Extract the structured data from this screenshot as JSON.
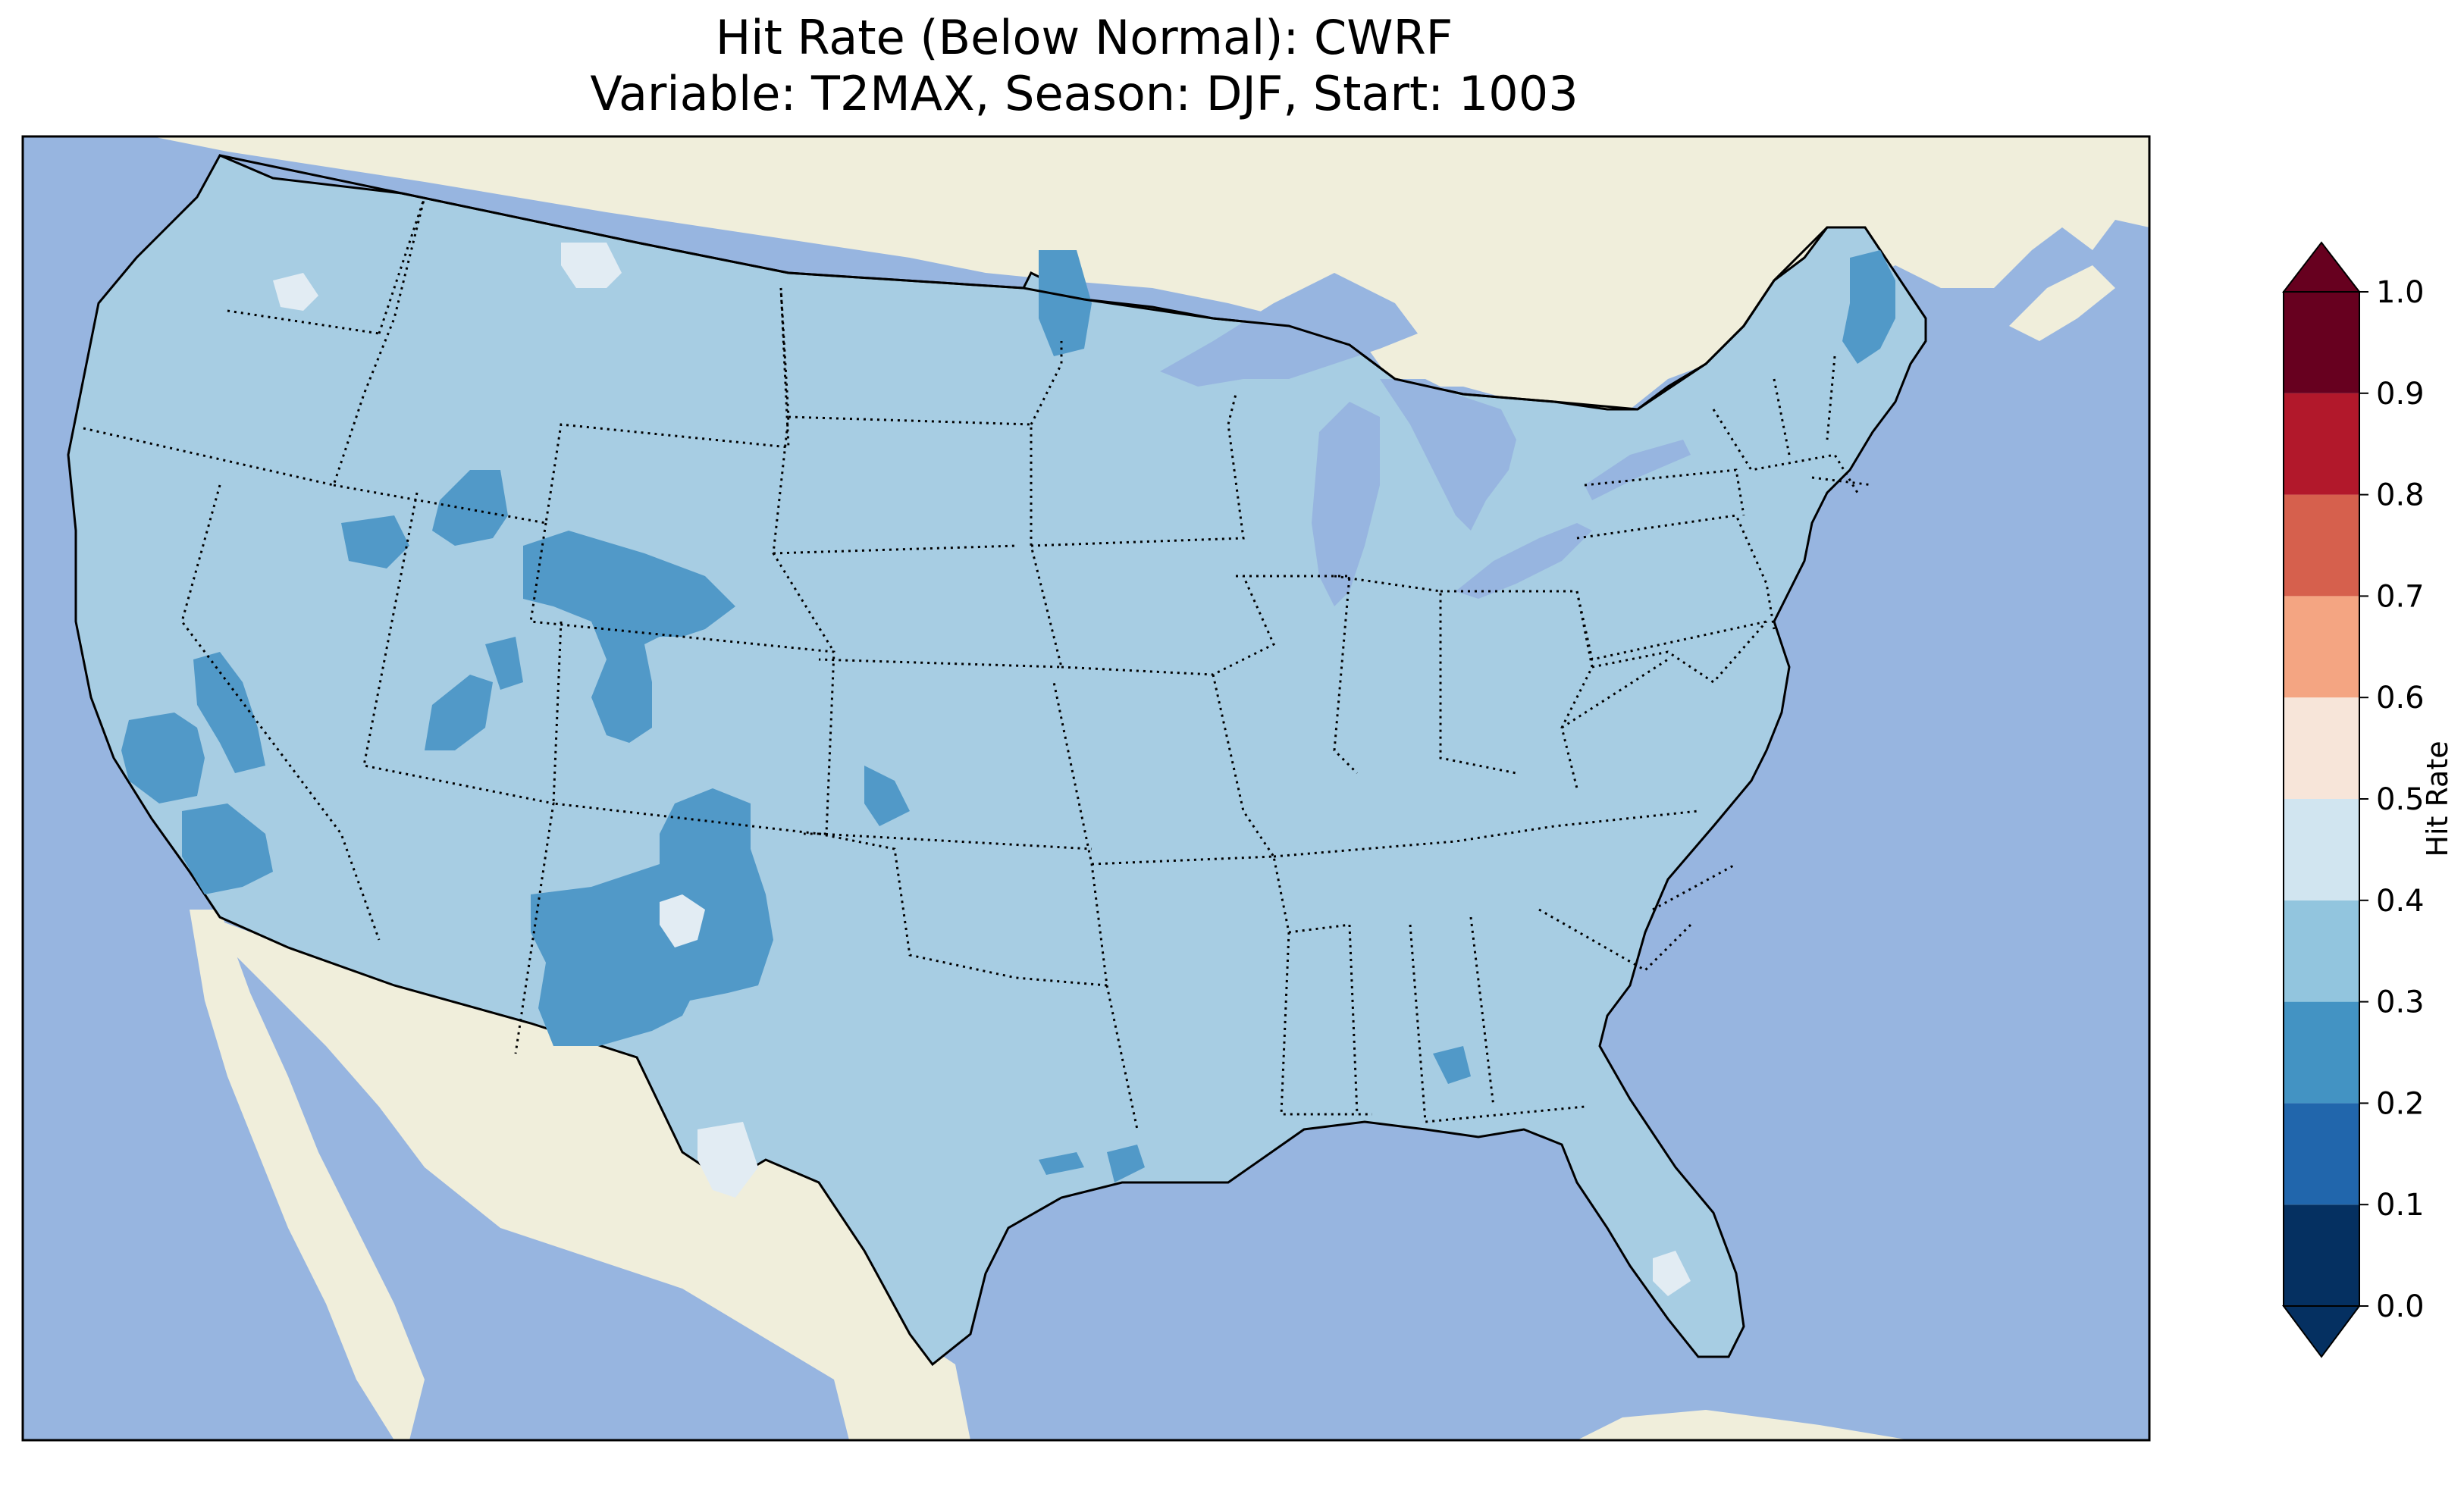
{
  "title": {
    "line1": "Hit Rate (Below Normal): CWRF",
    "line2": "Variable: T2MAX, Season: DJF, Start: 1003"
  },
  "colors": {
    "ocean": "#97b5e0",
    "land": "#f0eedb",
    "field_main": "#a7cde3",
    "field_low": "#5199c8",
    "field_high": "#e2ecf3",
    "border": "#000000"
  },
  "colorbar": {
    "label": "Hit Rate",
    "ticks": [
      "0.0",
      "0.1",
      "0.2",
      "0.3",
      "0.4",
      "0.5",
      "0.6",
      "0.7",
      "0.8",
      "0.9",
      "1.0"
    ],
    "bins": [
      {
        "range": [
          0.0,
          0.1
        ],
        "color": "#053061"
      },
      {
        "range": [
          0.1,
          0.2
        ],
        "color": "#2166ac"
      },
      {
        "range": [
          0.2,
          0.3
        ],
        "color": "#4393c3"
      },
      {
        "range": [
          0.3,
          0.4
        ],
        "color": "#92c5de"
      },
      {
        "range": [
          0.4,
          0.5
        ],
        "color": "#d1e5f0"
      },
      {
        "range": [
          0.5,
          0.6
        ],
        "color": "#f7e5d9"
      },
      {
        "range": [
          0.6,
          0.7
        ],
        "color": "#f4a582"
      },
      {
        "range": [
          0.7,
          0.8
        ],
        "color": "#d6604d"
      },
      {
        "range": [
          0.8,
          0.9
        ],
        "color": "#b2182b"
      },
      {
        "range": [
          0.9,
          1.0
        ],
        "color": "#67001f"
      }
    ],
    "extend_under_color": "#053061",
    "extend_over_color": "#67001f"
  }
}
